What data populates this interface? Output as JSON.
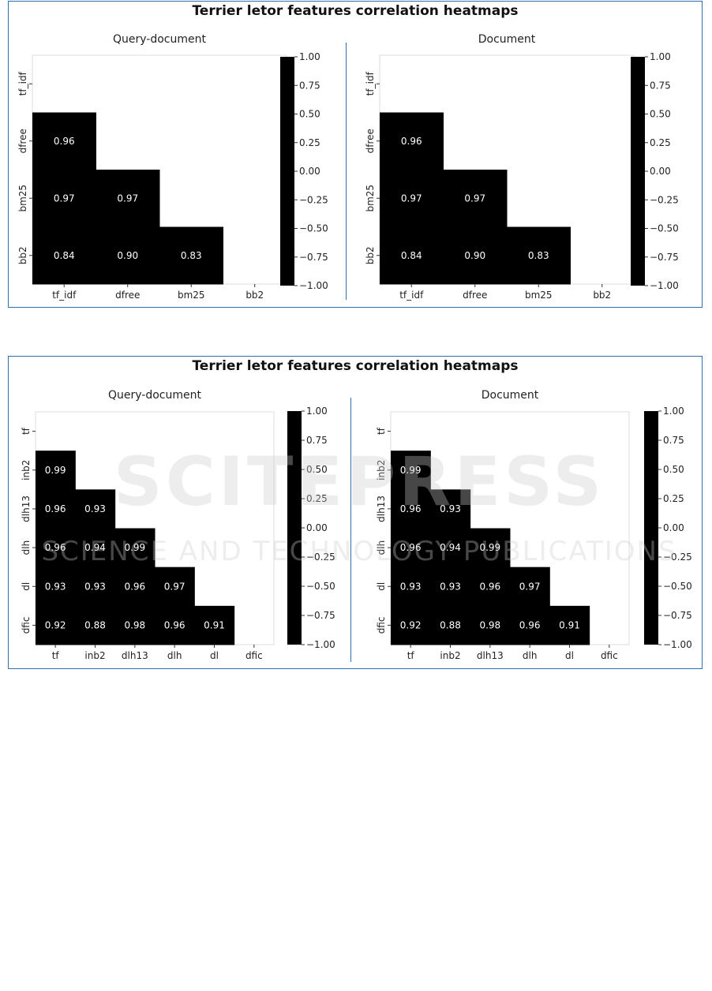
{
  "chart_data": [
    {
      "type": "heatmap",
      "title": "Terrier letor features correlation heatmaps",
      "labels": [
        "tf_idf",
        "dfree",
        "bm25",
        "bb2"
      ],
      "colorbar": {
        "min": -1.0,
        "max": 1.0,
        "ticks": [
          "1.00",
          "0.75",
          "0.50",
          "0.25",
          "0.00",
          "−0.25",
          "−0.50",
          "−0.75",
          "−1.00"
        ]
      },
      "panels": [
        {
          "subtitle": "Query-document",
          "matrix": [
            [
              null,
              null,
              null,
              null
            ],
            [
              0.96,
              null,
              null,
              null
            ],
            [
              0.97,
              0.97,
              null,
              null
            ],
            [
              0.84,
              0.9,
              0.83,
              null
            ]
          ]
        },
        {
          "subtitle": "Document",
          "matrix": [
            [
              null,
              null,
              null,
              null
            ],
            [
              0.96,
              null,
              null,
              null
            ],
            [
              0.97,
              0.97,
              null,
              null
            ],
            [
              0.84,
              0.9,
              0.83,
              null
            ]
          ]
        }
      ]
    },
    {
      "type": "heatmap",
      "title": "Terrier letor features correlation heatmaps",
      "labels": [
        "tf",
        "inb2",
        "dlh13",
        "dlh",
        "dl",
        "dfic"
      ],
      "colorbar": {
        "min": -1.0,
        "max": 1.0,
        "ticks": [
          "1.00",
          "0.75",
          "0.50",
          "0.25",
          "0.00",
          "−0.25",
          "−0.50",
          "−0.75",
          "−1.00"
        ]
      },
      "panels": [
        {
          "subtitle": "Query-document",
          "matrix": [
            [
              null,
              null,
              null,
              null,
              null,
              null
            ],
            [
              0.99,
              null,
              null,
              null,
              null,
              null
            ],
            [
              0.96,
              0.93,
              null,
              null,
              null,
              null
            ],
            [
              0.96,
              0.94,
              0.99,
              null,
              null,
              null
            ],
            [
              0.93,
              0.93,
              0.96,
              0.97,
              null,
              null
            ],
            [
              0.92,
              0.88,
              0.98,
              0.96,
              0.91,
              null
            ]
          ]
        },
        {
          "subtitle": "Document",
          "matrix": [
            [
              null,
              null,
              null,
              null,
              null,
              null
            ],
            [
              0.99,
              null,
              null,
              null,
              null,
              null
            ],
            [
              0.96,
              0.93,
              null,
              null,
              null,
              null
            ],
            [
              0.96,
              0.94,
              0.99,
              null,
              null,
              null
            ],
            [
              0.93,
              0.93,
              0.96,
              0.97,
              null,
              null
            ],
            [
              0.92,
              0.88,
              0.98,
              0.96,
              0.91,
              null
            ]
          ]
        }
      ]
    }
  ],
  "watermark": {
    "line1": "SCITEPRESS",
    "line2": "SCIENCE AND TECHNOLOGY PUBLICATIONS"
  }
}
